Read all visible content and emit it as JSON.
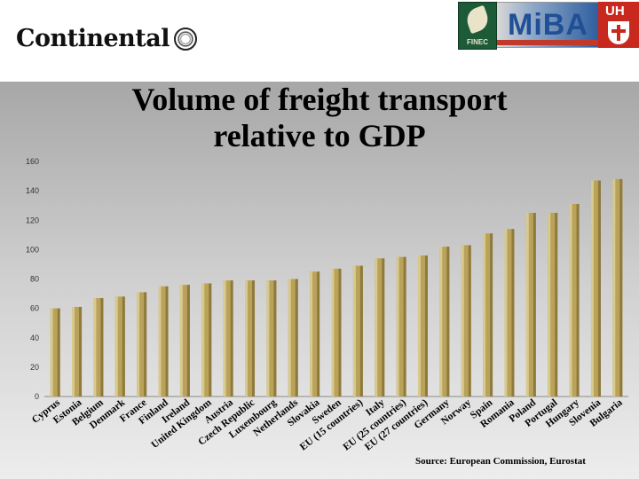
{
  "header": {
    "brand_name": "Continental",
    "partner_logos": [
      {
        "name": "FINEC",
        "label": "FINEC"
      },
      {
        "name": "MIBA",
        "label": "MiBA"
      },
      {
        "name": "UH",
        "label": "UH"
      }
    ]
  },
  "source": "Source: European Commission, Eurostat",
  "chart_data": {
    "type": "bar",
    "title": "Volume of freight transport relative to GDP",
    "xlabel": "",
    "ylabel": "",
    "ylim": [
      0,
      160
    ],
    "yticks": [
      0,
      20,
      40,
      60,
      80,
      100,
      120,
      140,
      160
    ],
    "grid": false,
    "legend": "none",
    "bar_color": "#b9a25a",
    "categories": [
      "Cyprus",
      "Estonia",
      "Belgium",
      "Denmark",
      "France",
      "Finland",
      "Ireland",
      "United Kingdom",
      "Austria",
      "Czech Republic",
      "Luxembourg",
      "Netherlands",
      "Slovakia",
      "Sweden",
      "EU (15 countries)",
      "Italy",
      "EU (25 countries)",
      "EU (27 countries)",
      "Germany",
      "Norway",
      "Spain",
      "Romania",
      "Poland",
      "Portugal",
      "Hungary",
      "Slovenia",
      "Bulgaria"
    ],
    "values": [
      60,
      61,
      67,
      68,
      71,
      75,
      76,
      77,
      79,
      79,
      79,
      80,
      85,
      87,
      89,
      94,
      95,
      96,
      102,
      103,
      111,
      114,
      125,
      125,
      131,
      147,
      148
    ]
  }
}
